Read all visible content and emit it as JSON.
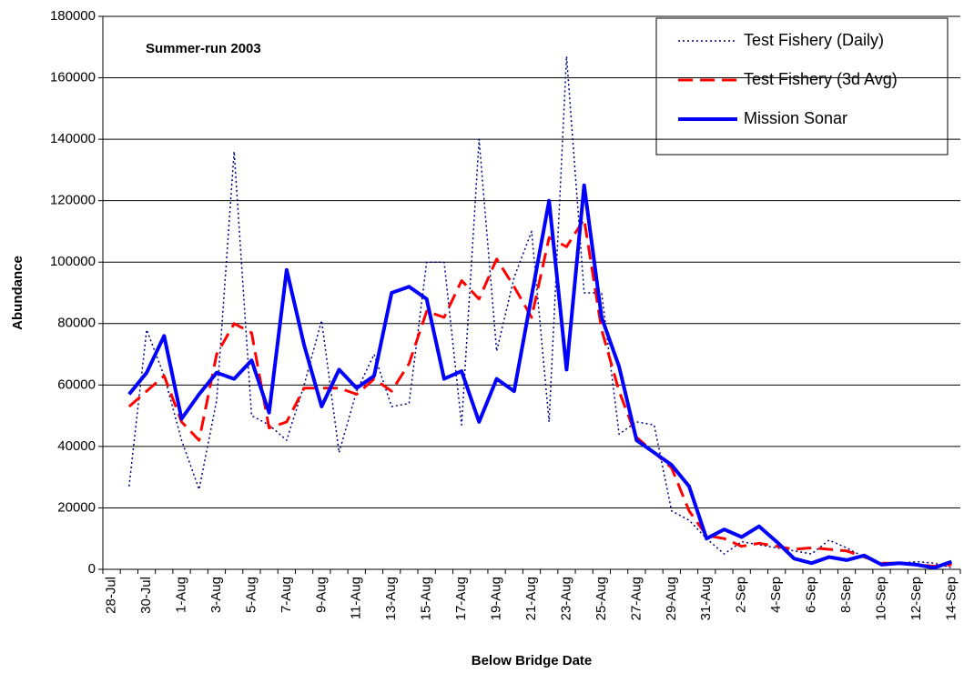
{
  "chart_data": {
    "type": "line",
    "title": "Summer-run 2003",
    "x_label": "Below Bridge Date",
    "y_label": "Abundance",
    "categories": [
      "28-Jul",
      null,
      "30-Jul",
      null,
      "1-Aug",
      null,
      "3-Aug",
      null,
      "5-Aug",
      null,
      "7-Aug",
      null,
      "9-Aug",
      null,
      "11-Aug",
      null,
      "13-Aug",
      null,
      "15-Aug",
      null,
      "17-Aug",
      null,
      "19-Aug",
      null,
      "21-Aug",
      null,
      "23-Aug",
      null,
      "25-Aug",
      null,
      "27-Aug",
      null,
      "29-Aug",
      null,
      "31-Aug",
      null,
      "2-Sep",
      null,
      "4-Sep",
      null,
      "6-Sep",
      null,
      "8-Sep",
      null,
      "10-Sep",
      null,
      "12-Sep",
      null,
      "14-Sep"
    ],
    "series": [
      {
        "name": "Test Fishery (Daily)",
        "color": "#000080",
        "style": "dotted",
        "width": 1.5,
        "values": [
          null,
          27000,
          78000,
          63000,
          42000,
          26000,
          55000,
          136000,
          50000,
          47000,
          42000,
          60000,
          81000,
          38000,
          58000,
          70000,
          53000,
          54000,
          100000,
          100000,
          47000,
          140000,
          71000,
          95000,
          110000,
          48000,
          167000,
          90000,
          90000,
          44000,
          48000,
          47000,
          19000,
          16000,
          10000,
          5000,
          9000,
          8000,
          7000,
          6000,
          5000,
          9500,
          7000,
          4000,
          2000,
          2000,
          2500,
          2000,
          500
        ]
      },
      {
        "name": "Test Fishery (3d Avg)",
        "color": "#ff0000",
        "style": "dashed",
        "width": 3,
        "values": [
          null,
          53000,
          58000,
          63000,
          48000,
          42000,
          70000,
          80000,
          77000,
          46000,
          48000,
          59000,
          59000,
          59000,
          57000,
          62000,
          58000,
          67000,
          84000,
          82000,
          94000,
          88000,
          101000,
          92000,
          82000,
          108000,
          105000,
          114000,
          78000,
          58000,
          43000,
          38000,
          33000,
          19000,
          11000,
          10000,
          7500,
          8500,
          7500,
          6500,
          7000,
          6500,
          6000,
          4000,
          2000,
          2000,
          1500,
          1000,
          1500
        ]
      },
      {
        "name": "Mission Sonar",
        "color": "#0000ff",
        "style": "solid",
        "width": 4,
        "values": [
          null,
          57000,
          64000,
          76000,
          49000,
          57000,
          64000,
          62000,
          68000,
          51000,
          97500,
          73000,
          53000,
          65000,
          59000,
          63000,
          90000,
          92000,
          88000,
          62000,
          64500,
          48000,
          62000,
          58000,
          89000,
          120000,
          65000,
          125000,
          82000,
          66000,
          42000,
          38000,
          34000,
          27000,
          10000,
          13000,
          10500,
          14000,
          9000,
          3500,
          2000,
          4000,
          3000,
          4500,
          1500,
          2000,
          1500,
          500,
          2500
        ]
      }
    ],
    "ylim": [
      0,
      180000
    ],
    "yticks": [
      0,
      20000,
      40000,
      60000,
      80000,
      100000,
      120000,
      140000,
      160000,
      180000
    ],
    "grid": true,
    "legend": "top-right"
  }
}
